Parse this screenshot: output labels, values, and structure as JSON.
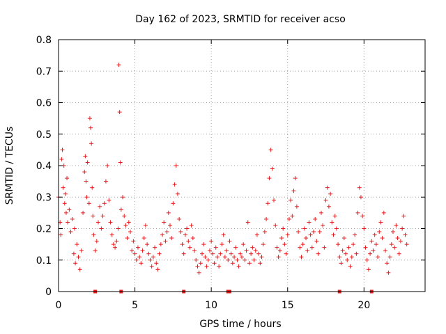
{
  "chart_data": {
    "type": "scatter",
    "title": "Day 162 of 2023, SRMTID for receiver acso",
    "xlabel": "GPS time / hours",
    "ylabel": "SRMTID / TECUs",
    "xlim": [
      0,
      24
    ],
    "ylim": [
      0,
      0.8
    ],
    "x_ticks": [
      0,
      5,
      10,
      15,
      20
    ],
    "y_ticks": [
      0,
      0.1,
      0.2,
      0.3,
      0.4,
      0.5,
      0.6,
      0.7,
      0.8
    ],
    "x_tick_labels": [
      "0",
      "5",
      "10",
      "15",
      "20"
    ],
    "y_tick_labels": [
      "0",
      "0.1",
      "0.2",
      "0.3",
      "0.4",
      "0.5",
      "0.6",
      "0.7",
      "0.8"
    ],
    "grid": true,
    "marker": "+",
    "color": "#e41a1c",
    "series": [
      {
        "name": "SRMTID",
        "points": [
          [
            0.0,
            0.3
          ],
          [
            0.1,
            0.22
          ],
          [
            0.15,
            0.18
          ],
          [
            0.2,
            0.42
          ],
          [
            0.25,
            0.45
          ],
          [
            0.3,
            0.33
          ],
          [
            0.35,
            0.4
          ],
          [
            0.4,
            0.28
          ],
          [
            0.45,
            0.31
          ],
          [
            0.5,
            0.25
          ],
          [
            0.55,
            0.36
          ],
          [
            0.6,
            0.22
          ],
          [
            0.7,
            0.26
          ],
          [
            0.8,
            0.19
          ],
          [
            0.9,
            0.23
          ],
          [
            1.0,
            0.12
          ],
          [
            1.05,
            0.2
          ],
          [
            1.1,
            0.09
          ],
          [
            1.2,
            0.15
          ],
          [
            1.3,
            0.11
          ],
          [
            1.4,
            0.07
          ],
          [
            1.5,
            0.13
          ],
          [
            1.6,
            0.25
          ],
          [
            1.7,
            0.38
          ],
          [
            1.75,
            0.43
          ],
          [
            1.8,
            0.35
          ],
          [
            1.85,
            0.3
          ],
          [
            1.9,
            0.41
          ],
          [
            2.0,
            0.28
          ],
          [
            2.05,
            0.55
          ],
          [
            2.1,
            0.52
          ],
          [
            2.15,
            0.47
          ],
          [
            2.2,
            0.33
          ],
          [
            2.25,
            0.24
          ],
          [
            2.3,
            0.18
          ],
          [
            2.4,
            0.13
          ],
          [
            2.5,
            0.16
          ],
          [
            2.6,
            0.22
          ],
          [
            2.7,
            0.27
          ],
          [
            2.8,
            0.2
          ],
          [
            2.9,
            0.24
          ],
          [
            3.0,
            0.28
          ],
          [
            3.1,
            0.35
          ],
          [
            3.2,
            0.4
          ],
          [
            3.3,
            0.29
          ],
          [
            3.4,
            0.22
          ],
          [
            3.5,
            0.18
          ],
          [
            3.6,
            0.15
          ],
          [
            3.7,
            0.14
          ],
          [
            3.8,
            0.16
          ],
          [
            3.9,
            0.2
          ],
          [
            3.95,
            0.72
          ],
          [
            4.0,
            0.57
          ],
          [
            4.05,
            0.41
          ],
          [
            4.1,
            0.26
          ],
          [
            4.2,
            0.3
          ],
          [
            4.3,
            0.24
          ],
          [
            4.4,
            0.21
          ],
          [
            4.5,
            0.17
          ],
          [
            4.6,
            0.22
          ],
          [
            4.7,
            0.19
          ],
          [
            4.8,
            0.13
          ],
          [
            4.9,
            0.16
          ],
          [
            5.0,
            0.12
          ],
          [
            5.1,
            0.1
          ],
          [
            5.2,
            0.14
          ],
          [
            5.3,
            0.11
          ],
          [
            5.4,
            0.09
          ],
          [
            5.5,
            0.13
          ],
          [
            5.6,
            0.17
          ],
          [
            5.7,
            0.21
          ],
          [
            5.8,
            0.15
          ],
          [
            5.9,
            0.12
          ],
          [
            6.0,
            0.1
          ],
          [
            6.1,
            0.08
          ],
          [
            6.2,
            0.11
          ],
          [
            6.3,
            0.14
          ],
          [
            6.4,
            0.09
          ],
          [
            6.5,
            0.07
          ],
          [
            6.6,
            0.12
          ],
          [
            6.7,
            0.15
          ],
          [
            6.8,
            0.18
          ],
          [
            6.9,
            0.22
          ],
          [
            7.0,
            0.16
          ],
          [
            7.1,
            0.19
          ],
          [
            7.2,
            0.25
          ],
          [
            7.3,
            0.21
          ],
          [
            7.4,
            0.17
          ],
          [
            7.5,
            0.28
          ],
          [
            7.6,
            0.34
          ],
          [
            7.7,
            0.4
          ],
          [
            7.8,
            0.31
          ],
          [
            7.9,
            0.23
          ],
          [
            8.0,
            0.19
          ],
          [
            8.1,
            0.15
          ],
          [
            8.2,
            0.12
          ],
          [
            8.3,
            0.18
          ],
          [
            8.4,
            0.2
          ],
          [
            8.5,
            0.16
          ],
          [
            8.6,
            0.14
          ],
          [
            8.7,
            0.21
          ],
          [
            8.8,
            0.17
          ],
          [
            8.9,
            0.13
          ],
          [
            9.0,
            0.1
          ],
          [
            9.1,
            0.08
          ],
          [
            9.2,
            0.06
          ],
          [
            9.3,
            0.09
          ],
          [
            9.4,
            0.12
          ],
          [
            9.5,
            0.15
          ],
          [
            9.6,
            0.11
          ],
          [
            9.7,
            0.08
          ],
          [
            9.8,
            0.1
          ],
          [
            9.9,
            0.13
          ],
          [
            10.0,
            0.16
          ],
          [
            10.1,
            0.12
          ],
          [
            10.2,
            0.09
          ],
          [
            10.3,
            0.14
          ],
          [
            10.4,
            0.11
          ],
          [
            10.5,
            0.08
          ],
          [
            10.6,
            0.12
          ],
          [
            10.7,
            0.15
          ],
          [
            10.8,
            0.18
          ],
          [
            10.9,
            0.11
          ],
          [
            11.0,
            0.13
          ],
          [
            11.1,
            0.1
          ],
          [
            11.2,
            0.16
          ],
          [
            11.3,
            0.12
          ],
          [
            11.4,
            0.09
          ],
          [
            11.5,
            0.11
          ],
          [
            11.6,
            0.14
          ],
          [
            11.7,
            0.1
          ],
          [
            11.8,
            0.08
          ],
          [
            11.9,
            0.12
          ],
          [
            12.0,
            0.11
          ],
          [
            12.1,
            0.15
          ],
          [
            12.2,
            0.1
          ],
          [
            12.3,
            0.13
          ],
          [
            12.4,
            0.22
          ],
          [
            12.5,
            0.09
          ],
          [
            12.6,
            0.12
          ],
          [
            12.7,
            0.14
          ],
          [
            12.8,
            0.1
          ],
          [
            12.9,
            0.13
          ],
          [
            13.0,
            0.18
          ],
          [
            13.1,
            0.12
          ],
          [
            13.2,
            0.09
          ],
          [
            13.3,
            0.11
          ],
          [
            13.4,
            0.15
          ],
          [
            13.5,
            0.19
          ],
          [
            13.6,
            0.23
          ],
          [
            13.7,
            0.28
          ],
          [
            13.8,
            0.36
          ],
          [
            13.9,
            0.45
          ],
          [
            14.0,
            0.39
          ],
          [
            14.1,
            0.29
          ],
          [
            14.2,
            0.21
          ],
          [
            14.3,
            0.14
          ],
          [
            14.4,
            0.11
          ],
          [
            14.5,
            0.13
          ],
          [
            14.6,
            0.17
          ],
          [
            14.7,
            0.2
          ],
          [
            14.8,
            0.15
          ],
          [
            14.9,
            0.12
          ],
          [
            15.0,
            0.18
          ],
          [
            15.1,
            0.23
          ],
          [
            15.2,
            0.29
          ],
          [
            15.3,
            0.24
          ],
          [
            15.4,
            0.32
          ],
          [
            15.5,
            0.36
          ],
          [
            15.6,
            0.27
          ],
          [
            15.7,
            0.19
          ],
          [
            15.8,
            0.14
          ],
          [
            15.9,
            0.11
          ],
          [
            16.0,
            0.15
          ],
          [
            16.1,
            0.2
          ],
          [
            16.2,
            0.17
          ],
          [
            16.3,
            0.13
          ],
          [
            16.4,
            0.22
          ],
          [
            16.5,
            0.18
          ],
          [
            16.6,
            0.14
          ],
          [
            16.7,
            0.19
          ],
          [
            16.8,
            0.23
          ],
          [
            16.9,
            0.16
          ],
          [
            17.0,
            0.12
          ],
          [
            17.1,
            0.19
          ],
          [
            17.2,
            0.25
          ],
          [
            17.3,
            0.21
          ],
          [
            17.4,
            0.14
          ],
          [
            17.5,
            0.29
          ],
          [
            17.6,
            0.33
          ],
          [
            17.7,
            0.27
          ],
          [
            17.8,
            0.31
          ],
          [
            17.9,
            0.22
          ],
          [
            18.0,
            0.18
          ],
          [
            18.1,
            0.24
          ],
          [
            18.2,
            0.2
          ],
          [
            18.3,
            0.15
          ],
          [
            18.4,
            0.11
          ],
          [
            18.5,
            0.09
          ],
          [
            18.6,
            0.13
          ],
          [
            18.7,
            0.17
          ],
          [
            18.8,
            0.12
          ],
          [
            18.9,
            0.1
          ],
          [
            19.0,
            0.14
          ],
          [
            19.1,
            0.08
          ],
          [
            19.2,
            0.11
          ],
          [
            19.3,
            0.15
          ],
          [
            19.4,
            0.18
          ],
          [
            19.5,
            0.12
          ],
          [
            19.6,
            0.25
          ],
          [
            19.7,
            0.33
          ],
          [
            19.8,
            0.3
          ],
          [
            19.9,
            0.24
          ],
          [
            20.0,
            0.2
          ],
          [
            20.1,
            0.14
          ],
          [
            20.2,
            0.1
          ],
          [
            20.3,
            0.07
          ],
          [
            20.4,
            0.12
          ],
          [
            20.5,
            0.16
          ],
          [
            20.6,
            0.13
          ],
          [
            20.7,
            0.18
          ],
          [
            20.8,
            0.15
          ],
          [
            20.9,
            0.11
          ],
          [
            21.0,
            0.19
          ],
          [
            21.1,
            0.22
          ],
          [
            21.2,
            0.17
          ],
          [
            21.3,
            0.25
          ],
          [
            21.4,
            0.13
          ],
          [
            21.5,
            0.09
          ],
          [
            21.6,
            0.06
          ],
          [
            21.7,
            0.11
          ],
          [
            21.8,
            0.15
          ],
          [
            21.9,
            0.19
          ],
          [
            22.0,
            0.14
          ],
          [
            22.1,
            0.21
          ],
          [
            22.2,
            0.17
          ],
          [
            22.3,
            0.12
          ],
          [
            22.4,
            0.16
          ],
          [
            22.5,
            0.2
          ],
          [
            22.6,
            0.24
          ],
          [
            22.7,
            0.18
          ],
          [
            22.8,
            0.15
          ]
        ]
      }
    ],
    "zero_markers_x": [
      2.4,
      4.1,
      8.2,
      11.1,
      11.2,
      18.4,
      20.5
    ]
  }
}
